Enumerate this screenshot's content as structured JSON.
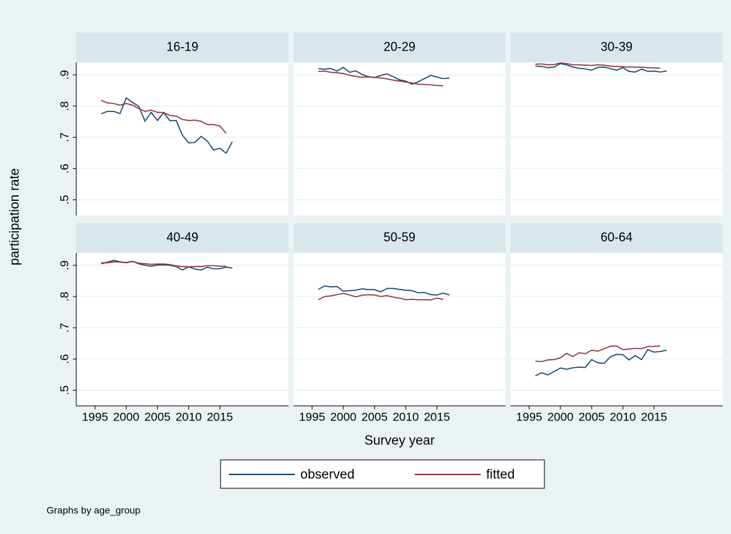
{
  "chart_data": [
    {
      "type": "line",
      "title": "16-19",
      "x": [
        1996,
        1997,
        1998,
        1999,
        2000,
        2001,
        2002,
        2003,
        2004,
        2005,
        2006,
        2007,
        2008,
        2009,
        2010,
        2011,
        2012,
        2013,
        2014,
        2015,
        2016,
        2017
      ],
      "series": [
        {
          "name": "observed",
          "color": "#1a476f",
          "values": [
            0.775,
            0.783,
            0.783,
            0.776,
            0.826,
            0.812,
            0.799,
            0.752,
            0.78,
            0.754,
            0.779,
            0.753,
            0.754,
            0.707,
            0.682,
            0.684,
            0.703,
            0.688,
            0.659,
            0.665,
            0.649,
            0.686
          ]
        },
        {
          "name": "fitted",
          "color": "#90353b",
          "values": [
            0.818,
            0.81,
            0.808,
            0.803,
            0.808,
            0.803,
            0.792,
            0.783,
            0.787,
            0.78,
            0.779,
            0.77,
            0.768,
            0.757,
            0.754,
            0.755,
            0.751,
            0.741,
            0.741,
            0.736,
            0.713,
            null
          ]
        }
      ]
    },
    {
      "type": "line",
      "title": "20-29",
      "x": [
        1996,
        1997,
        1998,
        1999,
        2000,
        2001,
        2002,
        2003,
        2004,
        2005,
        2006,
        2007,
        2008,
        2009,
        2010,
        2011,
        2012,
        2013,
        2014,
        2015,
        2016,
        2017
      ],
      "series": [
        {
          "name": "observed",
          "color": "#1a476f",
          "values": [
            0.92,
            0.918,
            0.92,
            0.912,
            0.924,
            0.908,
            0.913,
            0.901,
            0.894,
            0.891,
            0.898,
            0.903,
            0.894,
            0.884,
            0.88,
            0.87,
            0.878,
            0.888,
            0.898,
            0.893,
            0.888,
            0.89
          ]
        },
        {
          "name": "fitted",
          "color": "#90353b",
          "values": [
            0.911,
            0.912,
            0.908,
            0.907,
            0.904,
            0.899,
            0.895,
            0.892,
            0.893,
            0.892,
            0.89,
            0.887,
            0.883,
            0.88,
            0.877,
            0.874,
            0.87,
            0.869,
            0.868,
            0.866,
            0.865,
            null
          ]
        }
      ]
    },
    {
      "type": "line",
      "title": "30-39",
      "x": [
        1996,
        1997,
        1998,
        1999,
        2000,
        2001,
        2002,
        2003,
        2004,
        2005,
        2006,
        2007,
        2008,
        2009,
        2010,
        2011,
        2012,
        2013,
        2014,
        2015,
        2016,
        2017
      ],
      "series": [
        {
          "name": "observed",
          "color": "#1a476f",
          "values": [
            0.928,
            0.927,
            0.923,
            0.925,
            0.936,
            0.932,
            0.925,
            0.921,
            0.919,
            0.915,
            0.924,
            0.925,
            0.92,
            0.915,
            0.923,
            0.911,
            0.909,
            0.918,
            0.911,
            0.912,
            0.909,
            0.912
          ]
        },
        {
          "name": "fitted",
          "color": "#90353b",
          "values": [
            0.934,
            0.935,
            0.932,
            0.933,
            0.938,
            0.936,
            0.932,
            0.932,
            0.931,
            0.93,
            0.932,
            0.931,
            0.928,
            0.927,
            0.926,
            0.925,
            0.925,
            0.924,
            0.923,
            0.922,
            0.921,
            null
          ]
        }
      ]
    },
    {
      "type": "line",
      "title": "40-49",
      "x": [
        1996,
        1997,
        1998,
        1999,
        2000,
        2001,
        2002,
        2003,
        2004,
        2005,
        2006,
        2007,
        2008,
        2009,
        2010,
        2011,
        2012,
        2013,
        2014,
        2015,
        2016,
        2017
      ],
      "series": [
        {
          "name": "observed",
          "color": "#1a476f",
          "values": [
            0.905,
            0.91,
            0.916,
            0.911,
            0.909,
            0.913,
            0.905,
            0.9,
            0.897,
            0.901,
            0.901,
            0.9,
            0.896,
            0.885,
            0.895,
            0.888,
            0.885,
            0.894,
            0.889,
            0.889,
            0.894,
            0.891
          ]
        },
        {
          "name": "fitted",
          "color": "#90353b",
          "values": [
            0.908,
            0.908,
            0.911,
            0.91,
            0.908,
            0.912,
            0.907,
            0.905,
            0.903,
            0.904,
            0.904,
            0.902,
            0.898,
            0.896,
            0.895,
            0.896,
            0.896,
            0.899,
            0.899,
            0.897,
            0.897,
            null
          ]
        }
      ]
    },
    {
      "type": "line",
      "title": "50-59",
      "x": [
        1996,
        1997,
        1998,
        1999,
        2000,
        2001,
        2002,
        2003,
        2004,
        2005,
        2006,
        2007,
        2008,
        2009,
        2010,
        2011,
        2012,
        2013,
        2014,
        2015,
        2016,
        2017
      ],
      "series": [
        {
          "name": "observed",
          "color": "#1a476f",
          "values": [
            0.823,
            0.834,
            0.831,
            0.832,
            0.817,
            0.819,
            0.82,
            0.825,
            0.822,
            0.822,
            0.815,
            0.826,
            0.826,
            0.823,
            0.82,
            0.819,
            0.812,
            0.813,
            0.806,
            0.805,
            0.811,
            0.805
          ]
        },
        {
          "name": "fitted",
          "color": "#90353b",
          "values": [
            0.79,
            0.8,
            0.802,
            0.806,
            0.81,
            0.805,
            0.799,
            0.804,
            0.806,
            0.805,
            0.8,
            0.803,
            0.798,
            0.795,
            0.79,
            0.791,
            0.79,
            0.79,
            0.789,
            0.795,
            0.791,
            null
          ]
        }
      ]
    },
    {
      "type": "line",
      "title": "60-64",
      "x": [
        1996,
        1997,
        1998,
        1999,
        2000,
        2001,
        2002,
        2003,
        2004,
        2005,
        2006,
        2007,
        2008,
        2009,
        2010,
        2011,
        2012,
        2013,
        2014,
        2015,
        2016,
        2017
      ],
      "series": [
        {
          "name": "observed",
          "color": "#1a476f",
          "values": [
            0.546,
            0.556,
            0.549,
            0.56,
            0.571,
            0.567,
            0.572,
            0.574,
            0.573,
            0.598,
            0.588,
            0.586,
            0.607,
            0.615,
            0.614,
            0.597,
            0.611,
            0.598,
            0.63,
            0.622,
            0.624,
            0.628
          ]
        },
        {
          "name": "fitted",
          "color": "#90353b",
          "values": [
            0.593,
            0.592,
            0.597,
            0.598,
            0.604,
            0.618,
            0.608,
            0.62,
            0.617,
            0.628,
            0.625,
            0.633,
            0.641,
            0.642,
            0.63,
            0.632,
            0.634,
            0.633,
            0.64,
            0.64,
            0.642,
            null
          ]
        }
      ]
    }
  ],
  "axes": {
    "xlim": [
      1992,
      2026
    ],
    "xticks": [
      1995,
      2000,
      2005,
      2010,
      2015
    ],
    "ylim": [
      0.45,
      0.94
    ],
    "yticks": [
      {
        "value": 0.5,
        "label": ".5"
      },
      {
        "value": 0.6,
        "label": ".6"
      },
      {
        "value": 0.7,
        "label": ".7"
      },
      {
        "value": 0.8,
        "label": ".8"
      },
      {
        "value": 0.9,
        "label": ".9"
      }
    ],
    "grid": true
  },
  "y_axis_title": "participation rate",
  "x_axis_title": "Survey year",
  "note": "Graphs by age_group"
}
